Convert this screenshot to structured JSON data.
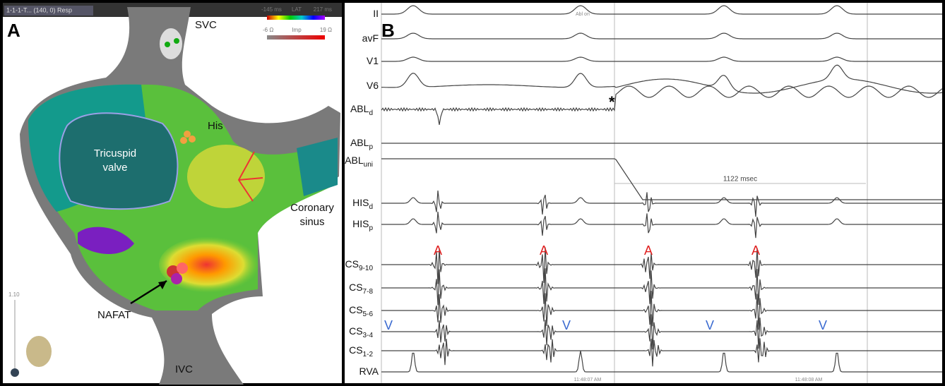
{
  "panel_a": {
    "letter": "A",
    "header": "1-1-1-T... (140, 0) Resp",
    "lat_legend": {
      "min": "-145 ms",
      "name": "LAT",
      "max": "217 ms"
    },
    "imp_legend": {
      "min": "-6 Ω",
      "name": "Imp",
      "max": "19 Ω"
    },
    "scale": "1.10",
    "labels": {
      "svc": "SVC",
      "his": "His",
      "tricuspid": [
        "Tricuspid",
        "valve"
      ],
      "coronary_sinus": [
        "Coronary",
        "sinus"
      ],
      "nafat": "NAFAT",
      "ivc": "IVC"
    }
  },
  "panel_b": {
    "letter": "B",
    "abl_on": "Abl on",
    "channels": [
      {
        "name": "II"
      },
      {
        "name": "avF"
      },
      {
        "name": "V1"
      },
      {
        "name": "V6"
      },
      {
        "name": "ABL",
        "sub": "d"
      },
      {
        "name": "ABL",
        "sub": "p"
      },
      {
        "name": "ABL",
        "sub": "uni"
      },
      {
        "name": "HIS",
        "sub": "d"
      },
      {
        "name": "HIS",
        "sub": "p"
      },
      {
        "name": "CS",
        "sub": "9-10"
      },
      {
        "name": "CS",
        "sub": "7-8"
      },
      {
        "name": "CS",
        "sub": "5-6"
      },
      {
        "name": "CS",
        "sub": "3-4"
      },
      {
        "name": "CS",
        "sub": "1-2"
      },
      {
        "name": "RVA"
      }
    ],
    "asterisk": "*",
    "interval": "1122 msec",
    "atrial_marks": [
      "A",
      "A",
      "A",
      "A"
    ],
    "ventricular_marks": [
      "V",
      "V",
      "V",
      "V"
    ],
    "timestamps": [
      "11:48:07 AM",
      "11:48:08 AM"
    ]
  }
}
